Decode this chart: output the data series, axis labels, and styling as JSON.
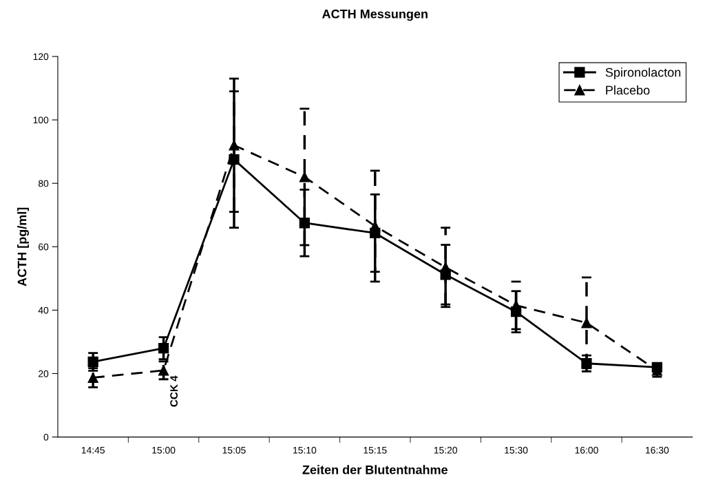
{
  "chart_data": {
    "type": "line",
    "title": "ACTH Messungen",
    "xlabel": "Zeiten der Blutentnahme",
    "ylabel": "ACTH [pg/ml]",
    "categories": [
      "14:45",
      "15:00",
      "15:05",
      "15:10",
      "15:15",
      "15:20",
      "15:30",
      "16:00",
      "16:30"
    ],
    "series": [
      {
        "name": "Spironolacton",
        "color": "#000000",
        "marker": "square",
        "line_style": "solid",
        "values": [
          23.7,
          28,
          87.5,
          67.5,
          64.3,
          51.2,
          39.5,
          23.2,
          22
        ],
        "errors": [
          2.8,
          3.5,
          21.5,
          10.5,
          12.2,
          9.4,
          6.5,
          2.5,
          1
        ]
      },
      {
        "name": "Placebo",
        "color": "#000000",
        "marker": "triangle",
        "line_style": "dashed",
        "values": [
          18.7,
          21,
          92,
          82,
          66.5,
          53.5,
          41.5,
          36,
          21
        ],
        "errors": [
          3,
          2.8,
          21,
          21.5,
          17.5,
          12.5,
          7.5,
          14.3,
          2
        ]
      }
    ],
    "ylim": [
      0,
      120
    ],
    "yticks": [
      0,
      20,
      40,
      60,
      80,
      100,
      120
    ],
    "grid": false,
    "legend": "top right",
    "annotations": [
      "CCK 4"
    ]
  }
}
